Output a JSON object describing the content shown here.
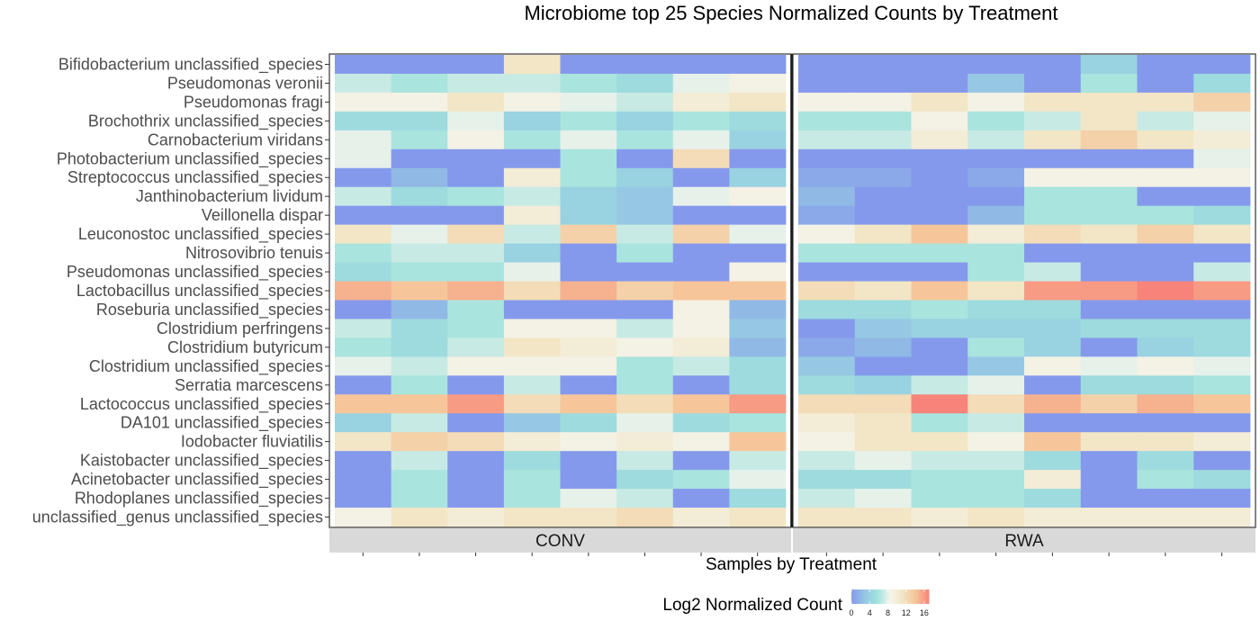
{
  "chart_data": {
    "type": "heatmap",
    "title": "Microbiome top 25 Species Normalized Counts by Treatment",
    "xlabel": "Samples by Treatment",
    "ylabel": "",
    "facets": [
      "CONV",
      "RWA"
    ],
    "samples_per_facet": 8,
    "species": [
      "Bifidobacterium unclassified_species",
      "Pseudomonas veronii",
      "Pseudomonas fragi",
      "Brochothrix unclassified_species",
      "Carnobacterium viridans",
      "Photobacterium unclassified_species",
      "Streptococcus unclassified_species",
      "Janthinobacterium lividum",
      "Veillonella dispar",
      "Leuconostoc unclassified_species",
      "Nitrosovibrio tenuis",
      "Pseudomonas unclassified_species",
      "Lactobacillus unclassified_species",
      "Roseburia unclassified_species",
      "Clostridium perfringens",
      "Clostridium butyricum",
      "Clostridium unclassified_species",
      "Serratia marcescens",
      "Lactococcus unclassified_species",
      "DA101 unclassified_species",
      "Iodobacter fluviatilis",
      "Kaistobacter unclassified_species",
      "Acinetobacter unclassified_species",
      "Rhodoplanes unclassified_species",
      "unclassified_genus unclassified_species"
    ],
    "values": {
      "CONV": [
        [
          0,
          0,
          0,
          11,
          0,
          0,
          0,
          0
        ],
        [
          7,
          6,
          7,
          7,
          6,
          5,
          8,
          9
        ],
        [
          9,
          9,
          11,
          9,
          8,
          7,
          10,
          11
        ],
        [
          5,
          5,
          8,
          4,
          6,
          4,
          6,
          5
        ],
        [
          8,
          6,
          9,
          6,
          8,
          6,
          8,
          4
        ],
        [
          8,
          0,
          0,
          0,
          6,
          0,
          12,
          0
        ],
        [
          0,
          2,
          0,
          10,
          6,
          4,
          0,
          4
        ],
        [
          7,
          5,
          6,
          7,
          4,
          3,
          8,
          9
        ],
        [
          0,
          0,
          0,
          10,
          4,
          3,
          0,
          0
        ],
        [
          11,
          8,
          12,
          7,
          13,
          7,
          13,
          8
        ],
        [
          6,
          7,
          7,
          4,
          0,
          6,
          0,
          0
        ],
        [
          5,
          6,
          6,
          8,
          0,
          0,
          0,
          9
        ],
        [
          15,
          14,
          15,
          12,
          15,
          13,
          14,
          14
        ],
        [
          0,
          2,
          6,
          0,
          0,
          0,
          9,
          2
        ],
        [
          7,
          5,
          6,
          9,
          9,
          7,
          9,
          3
        ],
        [
          6,
          5,
          7,
          11,
          10,
          9,
          10,
          2
        ],
        [
          8,
          7,
          9,
          9,
          9,
          6,
          7,
          5
        ],
        [
          0,
          6,
          0,
          7,
          0,
          6,
          0,
          5
        ],
        [
          14,
          14,
          16,
          12,
          14,
          12,
          14,
          16
        ],
        [
          4,
          7,
          0,
          3,
          5,
          8,
          5,
          6
        ],
        [
          11,
          13,
          12,
          10,
          9,
          10,
          9,
          14
        ],
        [
          0,
          7,
          0,
          5,
          0,
          7,
          0,
          7
        ],
        [
          0,
          6,
          0,
          6,
          0,
          5,
          6,
          8
        ],
        [
          0,
          6,
          0,
          6,
          8,
          7,
          0,
          5
        ],
        [
          9,
          11,
          10,
          11,
          11,
          12,
          10,
          11
        ]
      ],
      "RWA": [
        [
          0,
          0,
          0,
          0,
          0,
          4,
          0,
          0
        ],
        [
          0,
          0,
          0,
          3,
          0,
          6,
          0,
          5
        ],
        [
          9,
          9,
          11,
          9,
          11,
          11,
          11,
          13
        ],
        [
          6,
          6,
          9,
          6,
          7,
          11,
          7,
          8
        ],
        [
          7,
          7,
          10,
          7,
          11,
          13,
          11,
          10
        ],
        [
          0,
          0,
          0,
          0,
          0,
          0,
          0,
          8
        ],
        [
          1,
          1,
          0,
          1,
          9,
          9,
          9,
          9
        ],
        [
          2,
          0,
          0,
          0,
          6,
          6,
          0,
          0
        ],
        [
          1,
          0,
          0,
          2,
          6,
          6,
          6,
          5
        ],
        [
          9,
          11,
          14,
          10,
          12,
          11,
          13,
          11
        ],
        [
          6,
          6,
          6,
          6,
          0,
          0,
          0,
          0
        ],
        [
          0,
          0,
          0,
          6,
          7,
          0,
          0,
          7
        ],
        [
          12,
          11,
          14,
          11,
          16,
          16,
          17,
          16
        ],
        [
          5,
          5,
          6,
          5,
          5,
          0,
          0,
          0
        ],
        [
          0,
          3,
          4,
          4,
          4,
          5,
          5,
          5
        ],
        [
          1,
          2,
          0,
          6,
          4,
          0,
          4,
          5
        ],
        [
          3,
          0,
          0,
          3,
          9,
          8,
          9,
          8
        ],
        [
          5,
          4,
          7,
          8,
          0,
          5,
          5,
          6
        ],
        [
          12,
          12,
          17,
          12,
          15,
          13,
          15,
          14
        ],
        [
          10,
          11,
          6,
          7,
          0,
          0,
          0,
          0
        ],
        [
          9,
          11,
          11,
          9,
          14,
          11,
          11,
          10
        ],
        [
          7,
          8,
          7,
          7,
          5,
          0,
          5,
          0
        ],
        [
          5,
          5,
          6,
          6,
          10,
          0,
          6,
          5
        ],
        [
          7,
          8,
          6,
          6,
          5,
          0,
          0,
          0
        ],
        [
          11,
          11,
          10,
          11,
          10,
          10,
          10,
          10
        ]
      ]
    },
    "colorscale": {
      "title": "Log2 Normalized Count",
      "min": 0,
      "max": 17,
      "ticks": [
        0,
        4,
        8,
        12,
        16
      ],
      "colors": [
        "#8599ec",
        "#95c6e4",
        "#9fe2dc",
        "#f5f4ed",
        "#f2e4c1",
        "#f6c498",
        "#f7847a"
      ]
    },
    "legend": "bottom",
    "grid": false
  }
}
